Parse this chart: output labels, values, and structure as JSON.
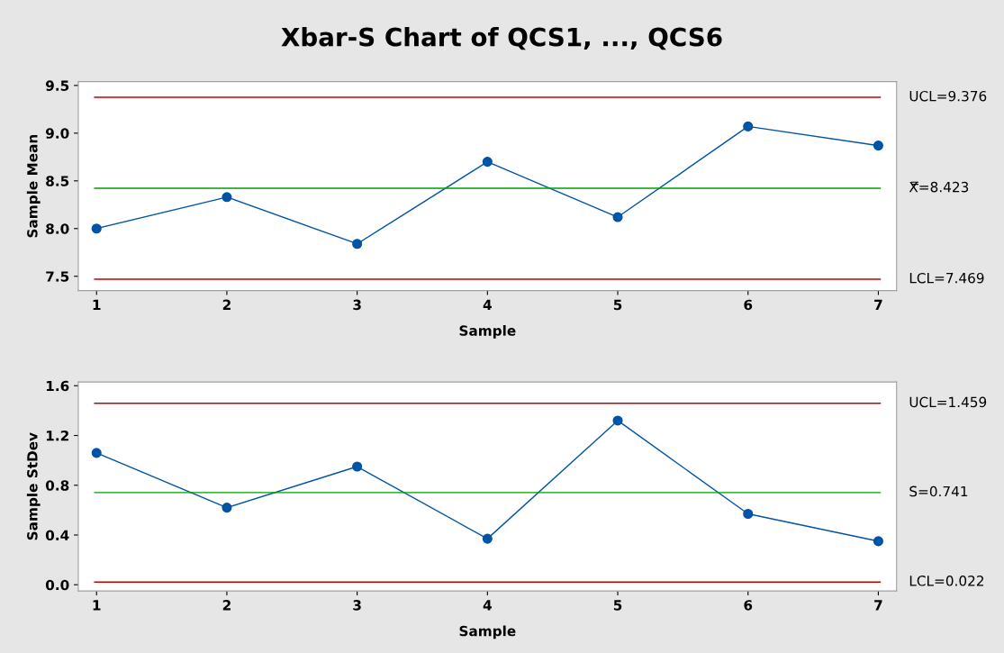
{
  "chart_data": [
    {
      "type": "line",
      "title": "Xbar-S Chart of QCS1, ..., QCS6",
      "xlabel": "Sample",
      "ylabel": "Sample Mean",
      "x": [
        1,
        2,
        3,
        4,
        5,
        6,
        7
      ],
      "series": [
        {
          "color": "#0054a6",
          "values": [
            8.0,
            8.33,
            7.84,
            8.7,
            8.12,
            9.07,
            8.87
          ]
        }
      ],
      "marker": "circle",
      "xlim": [
        0.86,
        7.14
      ],
      "xticks": [
        1,
        2,
        3,
        4,
        5,
        6,
        7
      ],
      "ylim": [
        7.35,
        9.54
      ],
      "yticks": [
        7.5,
        {
          "value": 8.0,
          "label": "8.0"
        },
        8.5,
        {
          "value": 9.0,
          "label": "9.0"
        },
        9.5
      ],
      "ref_lines": [
        {
          "axis": "y",
          "value": 9.376,
          "label": "UCL=9.376",
          "color": "#c00000"
        },
        {
          "axis": "y",
          "value": 8.423,
          "label": "X̿=8.423",
          "color": "#00a000"
        },
        {
          "axis": "y",
          "value": 7.469,
          "label": "LCL=7.469",
          "color": "#c00000"
        }
      ],
      "grid": false
    },
    {
      "type": "line",
      "xlabel": "Sample",
      "ylabel": "Sample StDev",
      "x": [
        1,
        2,
        3,
        4,
        5,
        6,
        7
      ],
      "series": [
        {
          "color": "#0054a6",
          "values": [
            1.06,
            0.62,
            0.95,
            0.37,
            1.32,
            0.57,
            0.35
          ]
        }
      ],
      "marker": "circle",
      "xlim": [
        0.86,
        7.14
      ],
      "xticks": [
        1,
        2,
        3,
        4,
        5,
        6,
        7
      ],
      "ylim": [
        -0.05,
        1.63
      ],
      "yticks": [
        {
          "value": 0.0,
          "label": "0.0"
        },
        0.4,
        0.8,
        1.2,
        1.6
      ],
      "ref_lines": [
        {
          "axis": "y",
          "value": 1.459,
          "label": "UCL=1.459",
          "color": "#c00000"
        },
        {
          "axis": "y",
          "value": 0.741,
          "label": "S̄=0.741",
          "color": "#00a000"
        },
        {
          "axis": "y",
          "value": 0.022,
          "label": "LCL=0.022",
          "color": "#c00000"
        }
      ],
      "grid": false
    }
  ]
}
